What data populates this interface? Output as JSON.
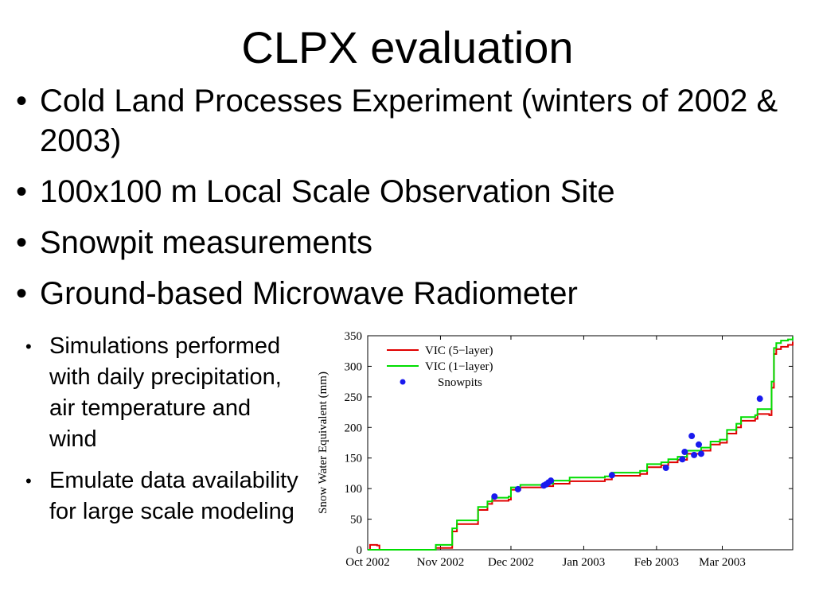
{
  "slide": {
    "title": "CLPX evaluation",
    "bullets": [
      "Cold Land Processes Experiment (winters of 2002 & 2003)",
      "100x100 m Local Scale Observation Site",
      "Snowpit measurements",
      "Ground-based Microwave Radiometer"
    ],
    "sub_bullets": [
      "Simulations performed with daily precipitation, air temperature and wind",
      "Emulate data availability for large scale modeling"
    ],
    "bullet_glyph": "•"
  },
  "chart_data": {
    "type": "line",
    "title": "",
    "xlabel": "",
    "ylabel": "Snow Water Equivalent (mm)",
    "x_range": [
      "2002-10-01",
      "2003-03-31"
    ],
    "ylim": [
      0,
      350
    ],
    "xticks": [
      "Oct 2002",
      "Nov 2002",
      "Dec 2002",
      "Jan 2003",
      "Feb 2003",
      "Mar 2003"
    ],
    "xtick_dates": [
      "2002-10-01",
      "2002-11-01",
      "2002-12-01",
      "2003-01-01",
      "2003-02-01",
      "2003-03-01"
    ],
    "yticks": [
      0,
      50,
      100,
      150,
      200,
      250,
      300,
      350
    ],
    "grid": false,
    "legend_position": "top-left",
    "series": [
      {
        "name": "VIC (5−layer)",
        "color": "#e00000",
        "points": [
          [
            "2002-10-01",
            0
          ],
          [
            "2002-10-02",
            8
          ],
          [
            "2002-10-05",
            7
          ],
          [
            "2002-10-06",
            0
          ],
          [
            "2002-10-25",
            0
          ],
          [
            "2002-10-30",
            3
          ],
          [
            "2002-11-04",
            3
          ],
          [
            "2002-11-06",
            30
          ],
          [
            "2002-11-08",
            42
          ],
          [
            "2002-11-15",
            42
          ],
          [
            "2002-11-17",
            65
          ],
          [
            "2002-11-21",
            75
          ],
          [
            "2002-11-23",
            80
          ],
          [
            "2002-11-30",
            82
          ],
          [
            "2002-12-01",
            98
          ],
          [
            "2002-12-05",
            102
          ],
          [
            "2002-12-15",
            104
          ],
          [
            "2002-12-19",
            108
          ],
          [
            "2002-12-26",
            112
          ],
          [
            "2003-01-10",
            115
          ],
          [
            "2003-01-13",
            121
          ],
          [
            "2003-01-25",
            124
          ],
          [
            "2003-01-28",
            135
          ],
          [
            "2003-02-03",
            138
          ],
          [
            "2003-02-06",
            143
          ],
          [
            "2003-02-10",
            147
          ],
          [
            "2003-02-14",
            157
          ],
          [
            "2003-02-20",
            162
          ],
          [
            "2003-02-24",
            172
          ],
          [
            "2003-02-28",
            175
          ],
          [
            "2003-03-03",
            190
          ],
          [
            "2003-03-07",
            200
          ],
          [
            "2003-03-09",
            211
          ],
          [
            "2003-03-15",
            214
          ],
          [
            "2003-03-16",
            222
          ],
          [
            "2003-03-20",
            222
          ],
          [
            "2003-03-21",
            220
          ],
          [
            "2003-03-22",
            265
          ],
          [
            "2003-03-23",
            320
          ],
          [
            "2003-03-24",
            328
          ],
          [
            "2003-03-26",
            332
          ],
          [
            "2003-03-29",
            335
          ],
          [
            "2003-03-31",
            340
          ]
        ]
      },
      {
        "name": "VIC (1−layer)",
        "color": "#00dd00",
        "points": [
          [
            "2002-10-01",
            0
          ],
          [
            "2002-10-25",
            0
          ],
          [
            "2002-10-30",
            8
          ],
          [
            "2002-11-04",
            8
          ],
          [
            "2002-11-06",
            35
          ],
          [
            "2002-11-08",
            48
          ],
          [
            "2002-11-15",
            48
          ],
          [
            "2002-11-17",
            70
          ],
          [
            "2002-11-21",
            79
          ],
          [
            "2002-11-23",
            85
          ],
          [
            "2002-11-30",
            87
          ],
          [
            "2002-12-01",
            102
          ],
          [
            "2002-12-05",
            106
          ],
          [
            "2002-12-15",
            108
          ],
          [
            "2002-12-19",
            113
          ],
          [
            "2002-12-26",
            118
          ],
          [
            "2003-01-10",
            120
          ],
          [
            "2003-01-13",
            126
          ],
          [
            "2003-01-25",
            129
          ],
          [
            "2003-01-28",
            140
          ],
          [
            "2003-02-03",
            143
          ],
          [
            "2003-02-06",
            148
          ],
          [
            "2003-02-10",
            152
          ],
          [
            "2003-02-14",
            162
          ],
          [
            "2003-02-20",
            167
          ],
          [
            "2003-02-24",
            177
          ],
          [
            "2003-02-28",
            180
          ],
          [
            "2003-03-03",
            196
          ],
          [
            "2003-03-07",
            206
          ],
          [
            "2003-03-09",
            217
          ],
          [
            "2003-03-15",
            220
          ],
          [
            "2003-03-16",
            230
          ],
          [
            "2003-03-21",
            230
          ],
          [
            "2003-03-22",
            275
          ],
          [
            "2003-03-23",
            330
          ],
          [
            "2003-03-24",
            338
          ],
          [
            "2003-03-26",
            342
          ],
          [
            "2003-03-29",
            344
          ],
          [
            "2003-03-31",
            348
          ]
        ]
      },
      {
        "name": "Snowpits",
        "color": "#1a1aee",
        "marker": "dot",
        "points": [
          [
            "2002-11-24",
            87
          ],
          [
            "2002-12-04",
            99
          ],
          [
            "2002-12-15",
            105
          ],
          [
            "2002-12-16",
            107
          ],
          [
            "2002-12-17",
            110
          ],
          [
            "2002-12-18",
            113
          ],
          [
            "2003-01-13",
            122
          ],
          [
            "2003-02-05",
            134
          ],
          [
            "2003-02-12",
            148
          ],
          [
            "2003-02-13",
            160
          ],
          [
            "2003-02-16",
            186
          ],
          [
            "2003-02-17",
            155
          ],
          [
            "2003-02-19",
            172
          ],
          [
            "2003-02-20",
            157
          ],
          [
            "2003-03-17",
            247
          ]
        ]
      }
    ]
  }
}
